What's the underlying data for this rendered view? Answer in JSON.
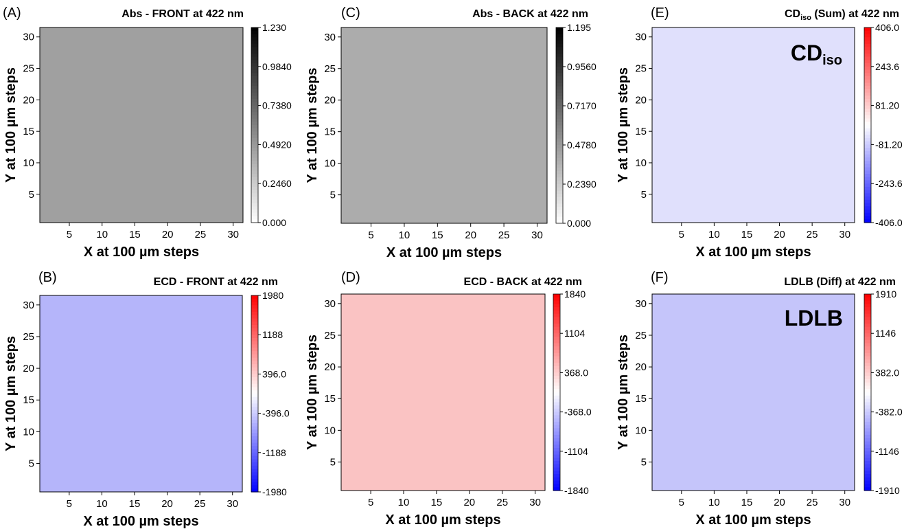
{
  "chart_data": [
    {
      "type": "heatmap",
      "panel_label": "(A)",
      "title": "Abs - FRONT at 422 nm",
      "xlabel": "X at 100 µm steps",
      "ylabel": "Y at 100 µm steps",
      "xlim": [
        0.5,
        31.5
      ],
      "ylim": [
        0.5,
        31.5
      ],
      "xticks": [
        5,
        10,
        15,
        20,
        25,
        30
      ],
      "yticks": [
        5,
        10,
        15,
        20,
        25,
        30
      ],
      "value": 0.52,
      "colorbar": {
        "scheme": "gray",
        "range": [
          0.0,
          1.23
        ],
        "ticks": [
          "1.230",
          "0.9840",
          "0.7380",
          "0.4920",
          "0.2460",
          "0.000"
        ]
      },
      "fill_color": "#a0a0a0"
    },
    {
      "type": "heatmap",
      "panel_label": "(C)",
      "title": "Abs - BACK at 422 nm",
      "xlabel": "X at 100 µm steps",
      "ylabel": "Y at 100 µm steps",
      "xlim": [
        0.5,
        31.5
      ],
      "ylim": [
        0.5,
        31.5
      ],
      "xticks": [
        5,
        10,
        15,
        20,
        25,
        30
      ],
      "yticks": [
        5,
        10,
        15,
        20,
        25,
        30
      ],
      "value": 0.39,
      "colorbar": {
        "scheme": "gray",
        "range": [
          0.0,
          1.195
        ],
        "ticks": [
          "1.195",
          "0.9560",
          "0.7170",
          "0.4780",
          "0.2390",
          "0.000"
        ]
      },
      "fill_color": "#acacac"
    },
    {
      "type": "heatmap",
      "panel_label": "(E)",
      "title_main": "CD",
      "title_sub": "iso",
      "title_rest": " (Sum) at 422 nm",
      "inset_main": "CD",
      "inset_sub": "iso",
      "xlabel": "X at 100 µm steps",
      "ylabel": "Y at 100 µm steps",
      "xlim": [
        0.5,
        31.5
      ],
      "ylim": [
        0.5,
        31.5
      ],
      "xticks": [
        5,
        10,
        15,
        20,
        25,
        30
      ],
      "yticks": [
        5,
        10,
        15,
        20,
        25,
        30
      ],
      "value": -40,
      "colorbar": {
        "scheme": "bwr",
        "range": [
          -406.0,
          406.0
        ],
        "ticks": [
          "406.0",
          "243.6",
          "81.20",
          "-81.20",
          "-243.6",
          "-406.0"
        ]
      },
      "fill_color": "#e0e0fc"
    },
    {
      "type": "heatmap",
      "panel_label": "(B)",
      "title": "ECD - FRONT at 422 nm",
      "xlabel": "X at 100 µm steps",
      "ylabel": "Y at 100 µm steps",
      "xlim": [
        0.5,
        31.5
      ],
      "ylim": [
        0.5,
        31.5
      ],
      "xticks": [
        5,
        10,
        15,
        20,
        25,
        30
      ],
      "yticks": [
        5,
        10,
        15,
        20,
        25,
        30
      ],
      "value": -650,
      "colorbar": {
        "scheme": "bwr",
        "range": [
          -1980,
          1980
        ],
        "ticks": [
          "1980",
          "1188",
          "396.0",
          "-396.0",
          "-1188",
          "-1980"
        ]
      },
      "fill_color": "#b5b5fa"
    },
    {
      "type": "heatmap",
      "panel_label": "(D)",
      "title": "ECD - BACK at 422 nm",
      "xlabel": "X at 100 µm steps",
      "ylabel": "Y at 100 µm steps",
      "xlim": [
        0.5,
        31.5
      ],
      "ylim": [
        0.5,
        31.5
      ],
      "xticks": [
        5,
        10,
        15,
        20,
        25,
        30
      ],
      "yticks": [
        5,
        10,
        15,
        20,
        25,
        30
      ],
      "value": 500,
      "colorbar": {
        "scheme": "bwr",
        "range": [
          -1840,
          1840
        ],
        "ticks": [
          "1840",
          "1104",
          "368.0",
          "-368.0",
          "-1104",
          "-1840"
        ]
      },
      "fill_color": "#fac3c3"
    },
    {
      "type": "heatmap",
      "panel_label": "(F)",
      "title": "LDLB (Diff) at 422 nm",
      "inset": "LDLB",
      "xlabel": "X at 100 µm steps",
      "ylabel": "Y at 100 µm steps",
      "xlim": [
        0.5,
        31.5
      ],
      "ylim": [
        0.5,
        31.5
      ],
      "xticks": [
        5,
        10,
        15,
        20,
        25,
        30
      ],
      "yticks": [
        5,
        10,
        15,
        20,
        25,
        30
      ],
      "value": -500,
      "colorbar": {
        "scheme": "bwr",
        "range": [
          -1910,
          1910
        ],
        "ticks": [
          "1910",
          "1146",
          "382.0",
          "-382.0",
          "-1146",
          "-1910"
        ]
      },
      "fill_color": "#c5c5fa"
    }
  ]
}
